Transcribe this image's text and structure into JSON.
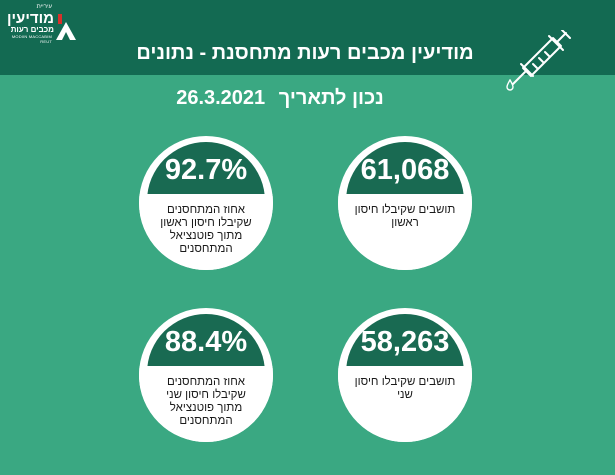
{
  "logo": {
    "small_top": "עיריית",
    "name": "מודיעין",
    "sub": "מכבים רעות",
    "tiny_en": "MODIIN MACCABIM REUT"
  },
  "header": {
    "title": "מודיעין מכבים רעות מתחסנת - נתונים"
  },
  "subtitle": {
    "label": "נכון לתאריך",
    "date": "26.3.2021"
  },
  "icons": {
    "syringe": "syringe-icon",
    "drop": "drop-icon"
  },
  "colors": {
    "background": "#3aa882",
    "header": "#136a52",
    "circle_cap": "#196a52",
    "card": "#ffffff"
  },
  "stats": [
    {
      "value": "61,068",
      "caption": "תושבים שקיבלו חיסון ראשון"
    },
    {
      "value": "92.7%",
      "caption": "אחוז המתחסנים שקיבלו חיסון ראשון מתוך פוטנציאל המתחסנים"
    },
    {
      "value": "58,263",
      "caption": "תושבים שקיבלו חיסון שני"
    },
    {
      "value": "88.4%",
      "caption": "אחוז המתחסנים שקיבלו חיסון שני מתוך פוטנציאל המתחסנים"
    }
  ]
}
